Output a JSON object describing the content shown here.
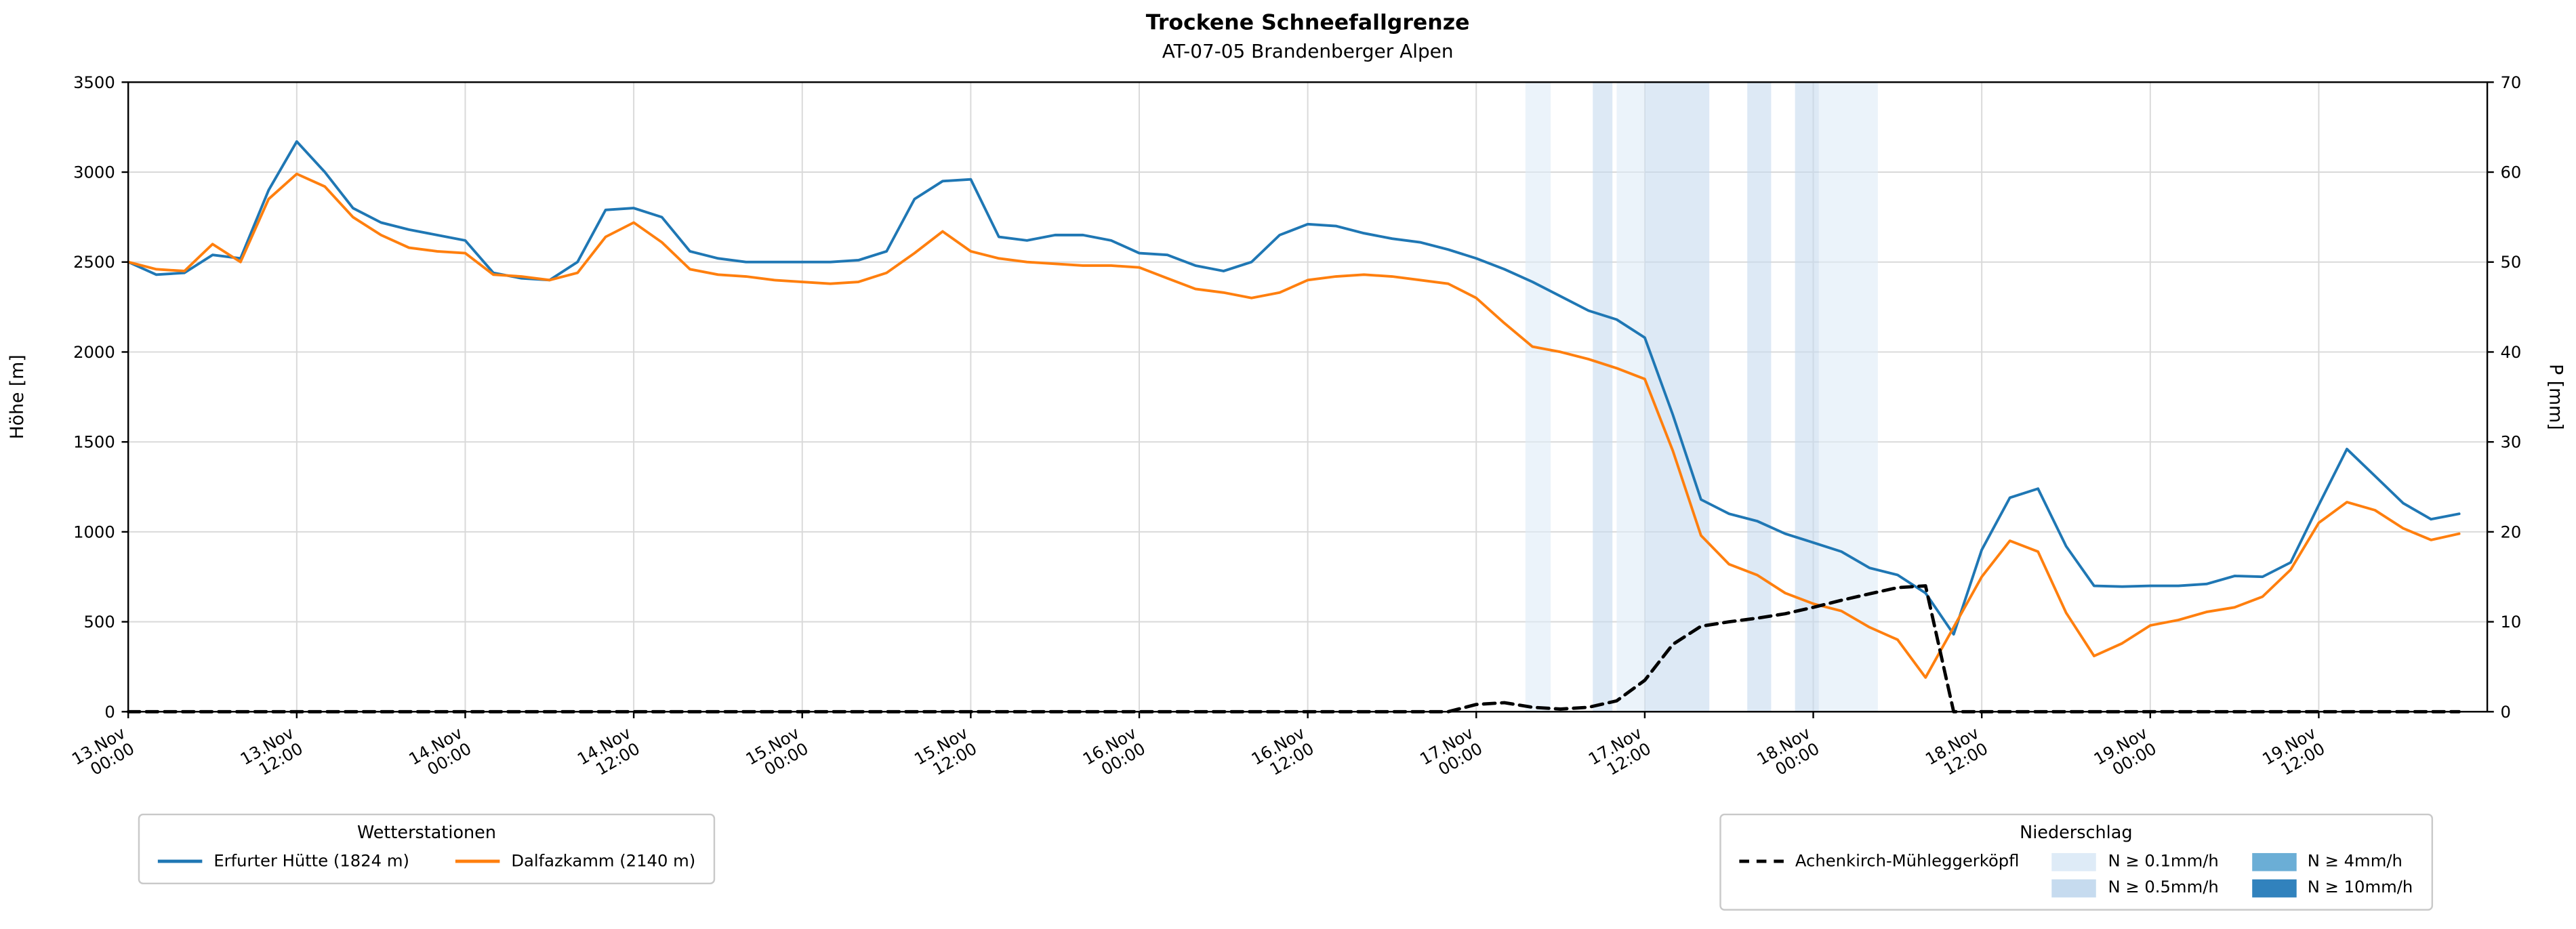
{
  "title": "Trockene Schneefallgrenze",
  "subtitle": "AT-07-05 Brandenberger Alpen",
  "axes": {
    "y_left_label": "Höhe [m]",
    "y_right_label": "P [mm]"
  },
  "legend_stations": {
    "title": "Wetterstationen",
    "entries": [
      {
        "label": "Erfurter Hütte (1824 m)",
        "color": "#1f77b4"
      },
      {
        "label": "Dalfazkamm (2140 m)",
        "color": "#ff7f0e"
      }
    ]
  },
  "legend_precip": {
    "title": "Niederschlag",
    "line_entry": {
      "label": "Achenkirch-Mühleggerköpfl",
      "color": "#000000",
      "dashed": true
    },
    "patches": [
      {
        "label": "N ≥ 0.1mm/h",
        "color": "#deebf7"
      },
      {
        "label": "N ≥ 0.5mm/h",
        "color": "#c6dbef"
      },
      {
        "label": "N ≥ 4mm/h",
        "color": "#6baed6"
      },
      {
        "label": "N ≥ 10mm/h",
        "color": "#3182bd"
      }
    ]
  },
  "chart_data": {
    "type": "line",
    "title": "Trockene Schneefallgrenze",
    "subtitle": "AT-07-05 Brandenberger Alpen",
    "x_unit": "hours since 13.Nov 00:00",
    "x_range": [
      0,
      168
    ],
    "x_step_h": 2,
    "x_ticks": [
      {
        "h": 0,
        "date": "13.Nov",
        "time": "00:00"
      },
      {
        "h": 12,
        "date": "13.Nov",
        "time": "12:00"
      },
      {
        "h": 24,
        "date": "14.Nov",
        "time": "00:00"
      },
      {
        "h": 36,
        "date": "14.Nov",
        "time": "12:00"
      },
      {
        "h": 48,
        "date": "15.Nov",
        "time": "00:00"
      },
      {
        "h": 60,
        "date": "15.Nov",
        "time": "12:00"
      },
      {
        "h": 72,
        "date": "16.Nov",
        "time": "00:00"
      },
      {
        "h": 84,
        "date": "16.Nov",
        "time": "12:00"
      },
      {
        "h": 96,
        "date": "17.Nov",
        "time": "00:00"
      },
      {
        "h": 108,
        "date": "17.Nov",
        "time": "12:00"
      },
      {
        "h": 120,
        "date": "18.Nov",
        "time": "00:00"
      },
      {
        "h": 132,
        "date": "18.Nov",
        "time": "12:00"
      },
      {
        "h": 144,
        "date": "19.Nov",
        "time": "00:00"
      },
      {
        "h": 156,
        "date": "19.Nov",
        "time": "12:00"
      }
    ],
    "y_left": {
      "label": "Höhe [m]",
      "min": 0,
      "max": 3500,
      "ticks": [
        0,
        500,
        1000,
        1500,
        2000,
        2500,
        3000,
        3500
      ]
    },
    "y_right": {
      "label": "P [mm]",
      "min": 0,
      "max": 70,
      "ticks": [
        0,
        10,
        20,
        30,
        40,
        50,
        60,
        70
      ]
    },
    "grid": true,
    "legend_position": "below",
    "series": [
      {
        "name": "Erfurter Hütte (1824 m)",
        "color": "#1f77b4",
        "axis": "left",
        "dashed": false,
        "values": [
          2500,
          2430,
          2440,
          2540,
          2520,
          2900,
          3170,
          3000,
          2800,
          2720,
          2680,
          2650,
          2620,
          2440,
          2410,
          2400,
          2500,
          2790,
          2800,
          2750,
          2560,
          2520,
          2500,
          2500,
          2500,
          2500,
          2510,
          2560,
          2850,
          2950,
          2960,
          2640,
          2620,
          2650,
          2650,
          2620,
          2550,
          2540,
          2480,
          2450,
          2500,
          2650,
          2710,
          2700,
          2660,
          2630,
          2610,
          2570,
          2520,
          2460,
          2390,
          2310,
          2230,
          2180,
          2080,
          1650,
          1180,
          1100,
          1060,
          990,
          940,
          890,
          800,
          760,
          660,
          430,
          900,
          1190,
          1240,
          920,
          700,
          695,
          700,
          700,
          710,
          755,
          750,
          830,
          1150,
          1460,
          1310,
          1160,
          1070,
          1100
        ]
      },
      {
        "name": "Dalfazkamm (2140 m)",
        "color": "#ff7f0e",
        "axis": "left",
        "dashed": false,
        "values": [
          2500,
          2460,
          2450,
          2600,
          2500,
          2850,
          2990,
          2920,
          2750,
          2650,
          2580,
          2560,
          2550,
          2430,
          2420,
          2400,
          2440,
          2640,
          2720,
          2610,
          2460,
          2430,
          2420,
          2400,
          2390,
          2380,
          2390,
          2440,
          2550,
          2670,
          2560,
          2520,
          2500,
          2490,
          2480,
          2480,
          2470,
          2410,
          2350,
          2330,
          2300,
          2330,
          2400,
          2420,
          2430,
          2420,
          2400,
          2380,
          2300,
          2160,
          2030,
          2000,
          1960,
          1910,
          1850,
          1450,
          980,
          820,
          760,
          660,
          600,
          560,
          470,
          400,
          190,
          470,
          750,
          950,
          890,
          550,
          310,
          380,
          480,
          510,
          555,
          580,
          640,
          790,
          1050,
          1165,
          1120,
          1020,
          955,
          990
        ]
      },
      {
        "name": "Achenkirch-Mühleggerköpfl",
        "color": "#000000",
        "axis": "right",
        "dashed": true,
        "values": [
          0,
          0,
          0,
          0,
          0,
          0,
          0,
          0,
          0,
          0,
          0,
          0,
          0,
          0,
          0,
          0,
          0,
          0,
          0,
          0,
          0,
          0,
          0,
          0,
          0,
          0,
          0,
          0,
          0,
          0,
          0,
          0,
          0,
          0,
          0,
          0,
          0,
          0,
          0,
          0,
          0,
          0,
          0,
          0,
          0,
          0,
          0,
          0,
          0.8,
          1.0,
          0.5,
          0.3,
          0.5,
          1.2,
          3.5,
          7.5,
          9.5,
          10.0,
          10.4,
          10.9,
          11.6,
          12.4,
          13.1,
          13.8,
          14.0,
          0,
          0,
          0,
          0,
          0,
          0,
          0,
          0,
          0,
          0,
          0,
          0,
          0,
          0,
          0,
          0,
          0,
          0,
          0
        ]
      }
    ],
    "precip_bands": [
      {
        "start_h": 99.5,
        "end_h": 101.3,
        "level": "0.1"
      },
      {
        "start_h": 104.3,
        "end_h": 105.7,
        "level": "0.5"
      },
      {
        "start_h": 106.0,
        "end_h": 108.0,
        "level": "0.1"
      },
      {
        "start_h": 108.0,
        "end_h": 112.6,
        "level": "0.5"
      },
      {
        "start_h": 115.3,
        "end_h": 117.0,
        "level": "0.5"
      },
      {
        "start_h": 118.7,
        "end_h": 120.4,
        "level": "0.5"
      },
      {
        "start_h": 120.4,
        "end_h": 124.6,
        "level": "0.1"
      }
    ],
    "band_colors": {
      "0.1": "#deebf7",
      "0.5": "#c6dbef",
      "4": "#6baed6",
      "10": "#3182bd"
    }
  }
}
